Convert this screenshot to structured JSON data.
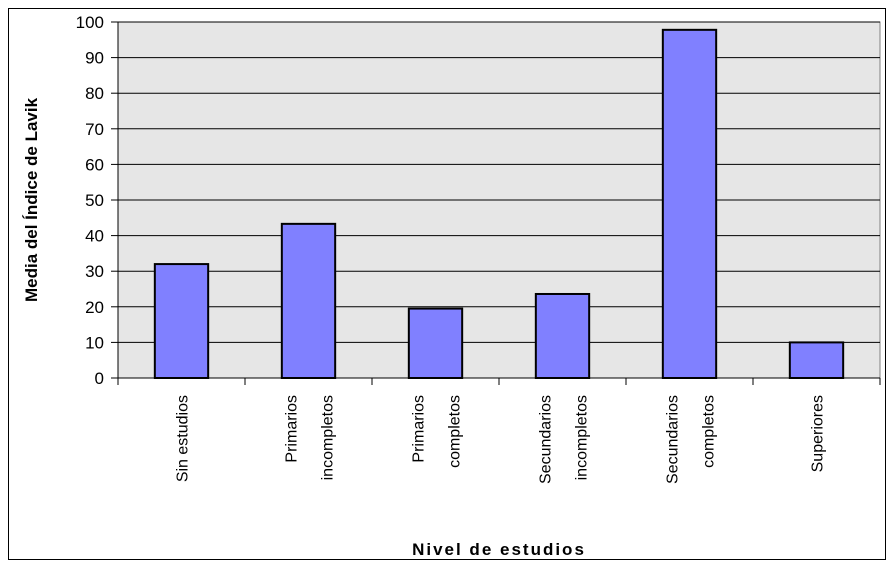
{
  "chart_data": {
    "type": "bar",
    "categories": [
      [
        "Sin estudios"
      ],
      [
        "Primarios",
        "incompletos"
      ],
      [
        "Primarios",
        "completos"
      ],
      [
        "Secundarios",
        "incompletos"
      ],
      [
        "Secundarios",
        "completos"
      ],
      [
        "Superiores"
      ]
    ],
    "values": [
      32,
      43.3,
      19.5,
      23.6,
      97.8,
      10
    ],
    "xlabel": "Nivel de estudios",
    "ylabel": "Media del Índice de Lavik",
    "ylim": [
      0,
      100
    ],
    "yticks": [
      0,
      10,
      20,
      30,
      40,
      50,
      60,
      70,
      80,
      90,
      100
    ],
    "grid": true,
    "colors": {
      "bar_fill": "#8080ff",
      "plot_background": "#e6e6e6",
      "gridline": "#000000"
    }
  }
}
